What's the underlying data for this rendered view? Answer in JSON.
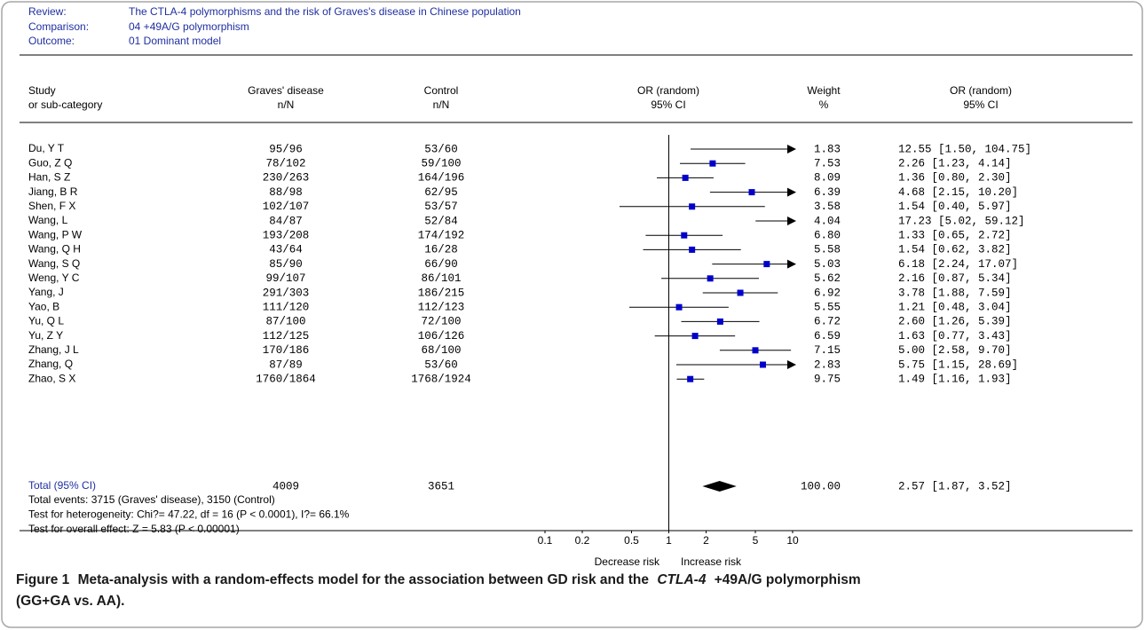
{
  "chart_data": {
    "type": "forest",
    "review_label": "Review:",
    "review": "The CTLA-4 polymorphisms and the risk of Graves's disease in Chinese population",
    "comparison_label": "Comparison:",
    "comparison": "04 +49A/G polymorphism",
    "outcome_label": "Outcome:",
    "outcome": "01 Dominant model",
    "headers": {
      "study": [
        "Study",
        "or sub-category"
      ],
      "cases": [
        "Graves' disease",
        "n/N"
      ],
      "controls": [
        "Control",
        "n/N"
      ],
      "plot": [
        "OR (random)",
        "95% CI"
      ],
      "weight": [
        "Weight",
        "%"
      ],
      "or": [
        "OR (random)",
        "95% CI"
      ]
    },
    "studies": [
      {
        "name": "Du, Y T",
        "cases": "95/96",
        "controls": "53/60",
        "weight": "1.83",
        "or": 12.55,
        "ci_low": 1.5,
        "ci_high": 104.75,
        "or_label": "12.55 [1.50, 104.75]"
      },
      {
        "name": "Guo, Z Q",
        "cases": "78/102",
        "controls": "59/100",
        "weight": "7.53",
        "or": 2.26,
        "ci_low": 1.23,
        "ci_high": 4.14,
        "or_label": "2.26 [1.23, 4.14]"
      },
      {
        "name": "Han, S Z",
        "cases": "230/263",
        "controls": "164/196",
        "weight": "8.09",
        "or": 1.36,
        "ci_low": 0.8,
        "ci_high": 2.3,
        "or_label": "1.36 [0.80, 2.30]"
      },
      {
        "name": "Jiang, B R",
        "cases": "88/98",
        "controls": "62/95",
        "weight": "6.39",
        "or": 4.68,
        "ci_low": 2.15,
        "ci_high": 10.2,
        "or_label": "4.68 [2.15, 10.20]"
      },
      {
        "name": "Shen, F X",
        "cases": "102/107",
        "controls": "53/57",
        "weight": "3.58",
        "or": 1.54,
        "ci_low": 0.4,
        "ci_high": 5.97,
        "or_label": "1.54 [0.40, 5.97]"
      },
      {
        "name": "Wang, L",
        "cases": "84/87",
        "controls": "52/84",
        "weight": "4.04",
        "or": 17.23,
        "ci_low": 5.02,
        "ci_high": 59.12,
        "or_label": "17.23 [5.02, 59.12]"
      },
      {
        "name": "Wang, P W",
        "cases": "193/208",
        "controls": "174/192",
        "weight": "6.80",
        "or": 1.33,
        "ci_low": 0.65,
        "ci_high": 2.72,
        "or_label": "1.33 [0.65, 2.72]"
      },
      {
        "name": "Wang, Q H",
        "cases": "43/64",
        "controls": "16/28",
        "weight": "5.58",
        "or": 1.54,
        "ci_low": 0.62,
        "ci_high": 3.82,
        "or_label": "1.54 [0.62, 3.82]"
      },
      {
        "name": "Wang, S Q",
        "cases": "85/90",
        "controls": "66/90",
        "weight": "5.03",
        "or": 6.18,
        "ci_low": 2.24,
        "ci_high": 17.07,
        "or_label": "6.18 [2.24, 17.07]"
      },
      {
        "name": "Weng, Y C",
        "cases": "99/107",
        "controls": "86/101",
        "weight": "5.62",
        "or": 2.16,
        "ci_low": 0.87,
        "ci_high": 5.34,
        "or_label": "2.16 [0.87, 5.34]"
      },
      {
        "name": "Yang, J",
        "cases": "291/303",
        "controls": "186/215",
        "weight": "6.92",
        "or": 3.78,
        "ci_low": 1.88,
        "ci_high": 7.59,
        "or_label": "3.78 [1.88, 7.59]"
      },
      {
        "name": "Yao, B",
        "cases": "111/120",
        "controls": "112/123",
        "weight": "5.55",
        "or": 1.21,
        "ci_low": 0.48,
        "ci_high": 3.04,
        "or_label": "1.21 [0.48, 3.04]"
      },
      {
        "name": "Yu, Q L",
        "cases": "87/100",
        "controls": "72/100",
        "weight": "6.72",
        "or": 2.6,
        "ci_low": 1.26,
        "ci_high": 5.39,
        "or_label": "2.60 [1.26, 5.39]"
      },
      {
        "name": "Yu, Z Y",
        "cases": "112/125",
        "controls": "106/126",
        "weight": "6.59",
        "or": 1.63,
        "ci_low": 0.77,
        "ci_high": 3.43,
        "or_label": "1.63 [0.77, 3.43]"
      },
      {
        "name": "Zhang, J L",
        "cases": "170/186",
        "controls": "68/100",
        "weight": "7.15",
        "or": 5.0,
        "ci_low": 2.58,
        "ci_high": 9.7,
        "or_label": "5.00 [2.58, 9.70]"
      },
      {
        "name": "Zhang, Q",
        "cases": "87/89",
        "controls": "53/60",
        "weight": "2.83",
        "or": 5.75,
        "ci_low": 1.15,
        "ci_high": 28.69,
        "or_label": "5.75 [1.15, 28.69]"
      },
      {
        "name": "Zhao, S X",
        "cases": "1760/1864",
        "controls": "1768/1924",
        "weight": "9.75",
        "or": 1.49,
        "ci_low": 1.16,
        "ci_high": 1.93,
        "or_label": "1.49 [1.16, 1.93]"
      }
    ],
    "total": {
      "name": "Total (95% CI)",
      "cases": "4009",
      "controls": "3651",
      "weight": "100.00",
      "or": 2.57,
      "ci_low": 1.87,
      "ci_high": 3.52,
      "or_label": "2.57 [1.87, 3.52]"
    },
    "footnotes": [
      "Total events: 3715 (Graves' disease), 3150 (Control)",
      "Test for heterogeneity: Chi?= 47.22, df = 16 (P < 0.0001), I?= 66.1%",
      "Test for overall effect: Z = 5.83 (P < 0.00001)"
    ],
    "xlim": [
      0.1,
      10
    ],
    "xticks": [
      0.1,
      0.2,
      0.5,
      1,
      2,
      5,
      10
    ],
    "log_x": true,
    "x_left_label": "Decrease risk",
    "x_right_label": "Increase risk",
    "color": "#0000cc",
    "caption": {
      "label": "Figure 1",
      "text": "Meta-analysis with a random-effects model for the association between GD risk and the",
      "italic": "CTLA-4",
      "text_after": "+49A/G polymorphism",
      "line2": "(GG+GA vs. AA)."
    }
  }
}
